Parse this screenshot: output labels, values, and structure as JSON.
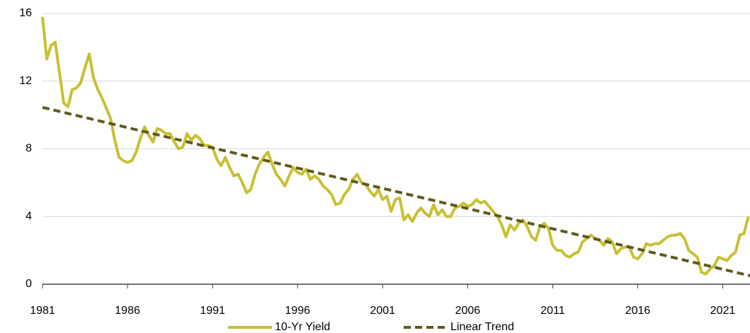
{
  "chart_data": {
    "type": "line",
    "series": [
      {
        "name": "10-Yr Yield",
        "color": "#c8c034",
        "dash": false,
        "x": [
          1981,
          1981.25,
          1981.5,
          1981.75,
          1982,
          1982.25,
          1982.5,
          1982.75,
          1983,
          1983.25,
          1983.5,
          1983.75,
          1984,
          1984.25,
          1984.5,
          1984.75,
          1985,
          1985.25,
          1985.5,
          1985.75,
          1986,
          1986.25,
          1986.5,
          1986.75,
          1987,
          1987.25,
          1987.5,
          1987.75,
          1988,
          1988.25,
          1988.5,
          1988.75,
          1989,
          1989.25,
          1989.5,
          1989.75,
          1990,
          1990.25,
          1990.5,
          1990.75,
          1991,
          1991.25,
          1991.5,
          1991.75,
          1992,
          1992.25,
          1992.5,
          1992.75,
          1993,
          1993.25,
          1993.5,
          1993.75,
          1994,
          1994.25,
          1994.5,
          1994.75,
          1995,
          1995.25,
          1995.5,
          1995.75,
          1996,
          1996.25,
          1996.5,
          1996.75,
          1997,
          1997.25,
          1997.5,
          1997.75,
          1998,
          1998.25,
          1998.5,
          1998.75,
          1999,
          1999.25,
          1999.5,
          1999.75,
          2000,
          2000.25,
          2000.5,
          2000.75,
          2001,
          2001.25,
          2001.5,
          2001.75,
          2002,
          2002.25,
          2002.5,
          2002.75,
          2003,
          2003.25,
          2003.5,
          2003.75,
          2004,
          2004.25,
          2004.5,
          2004.75,
          2005,
          2005.25,
          2005.5,
          2005.75,
          2006,
          2006.25,
          2006.5,
          2006.75,
          2007,
          2007.25,
          2007.5,
          2007.75,
          2008,
          2008.25,
          2008.5,
          2008.75,
          2009,
          2009.25,
          2009.5,
          2009.75,
          2010,
          2010.25,
          2010.5,
          2010.75,
          2011,
          2011.25,
          2011.5,
          2011.75,
          2012,
          2012.25,
          2012.5,
          2012.75,
          2013,
          2013.25,
          2013.5,
          2013.75,
          2014,
          2014.25,
          2014.5,
          2014.75,
          2015,
          2015.25,
          2015.5,
          2015.75,
          2016,
          2016.25,
          2016.5,
          2016.75,
          2017,
          2017.25,
          2017.5,
          2017.75,
          2018,
          2018.25,
          2018.5,
          2018.75,
          2019,
          2019.25,
          2019.5,
          2019.75,
          2020,
          2020.25,
          2020.5,
          2020.75,
          2021,
          2021.25,
          2021.5,
          2021.75,
          2022,
          2022.25,
          2022.5
        ],
        "values": [
          15.8,
          13.3,
          14.1,
          14.3,
          12.5,
          10.7,
          10.5,
          11.5,
          11.6,
          11.9,
          12.8,
          13.6,
          12.2,
          11.5,
          11.0,
          10.4,
          9.8,
          8.5,
          7.5,
          7.3,
          7.2,
          7.3,
          7.8,
          8.6,
          9.3,
          8.8,
          8.4,
          9.2,
          9.1,
          8.9,
          8.9,
          8.4,
          8.0,
          8.1,
          8.9,
          8.5,
          8.8,
          8.6,
          8.2,
          8.2,
          8.1,
          7.4,
          7.0,
          7.5,
          6.9,
          6.4,
          6.5,
          6.0,
          5.4,
          5.6,
          6.5,
          7.1,
          7.5,
          7.8,
          7.1,
          6.5,
          6.2,
          5.8,
          6.4,
          6.9,
          6.6,
          6.5,
          6.8,
          6.2,
          6.4,
          6.2,
          5.8,
          5.6,
          5.3,
          4.7,
          4.8,
          5.3,
          5.6,
          6.2,
          6.5,
          6.0,
          5.9,
          5.5,
          5.2,
          5.6,
          5.0,
          5.2,
          4.3,
          5.0,
          5.1,
          3.8,
          4.1,
          3.7,
          4.2,
          4.5,
          4.2,
          4.0,
          4.7,
          4.1,
          4.4,
          4.0,
          4.0,
          4.5,
          4.6,
          4.8,
          4.6,
          4.7,
          5.0,
          4.8,
          4.9,
          4.6,
          4.3,
          4.0,
          3.5,
          2.8,
          3.5,
          3.2,
          3.6,
          3.8,
          3.4,
          2.8,
          2.6,
          3.4,
          3.6,
          3.3,
          2.3,
          2.0,
          2.0,
          1.7,
          1.6,
          1.8,
          1.9,
          2.5,
          2.7,
          2.9,
          2.7,
          2.6,
          2.3,
          2.7,
          2.5,
          1.8,
          2.1,
          2.2,
          2.2,
          1.6,
          1.5,
          1.8,
          2.4,
          2.3,
          2.4,
          2.4,
          2.6,
          2.8,
          2.9,
          2.9,
          3.0,
          2.7,
          2.0,
          1.8,
          1.6,
          0.7,
          0.6,
          0.9,
          1.1,
          1.6,
          1.5,
          1.4,
          1.7,
          1.9,
          2.9,
          3.0,
          4.0
        ]
      },
      {
        "name": "Linear Trend",
        "color": "#5e5a1c",
        "dash": true,
        "x": [
          1981,
          2022.6
        ],
        "values": [
          10.45,
          0.5
        ]
      }
    ],
    "xlim": [
      1981,
      2022.6
    ],
    "xticks": [
      1981,
      1986,
      1991,
      1996,
      2001,
      2006,
      2011,
      2016,
      2021
    ],
    "ylim": [
      0,
      16
    ],
    "yticks": [
      0,
      4,
      8,
      12,
      16
    ],
    "grid": true,
    "legend": "bottom"
  }
}
